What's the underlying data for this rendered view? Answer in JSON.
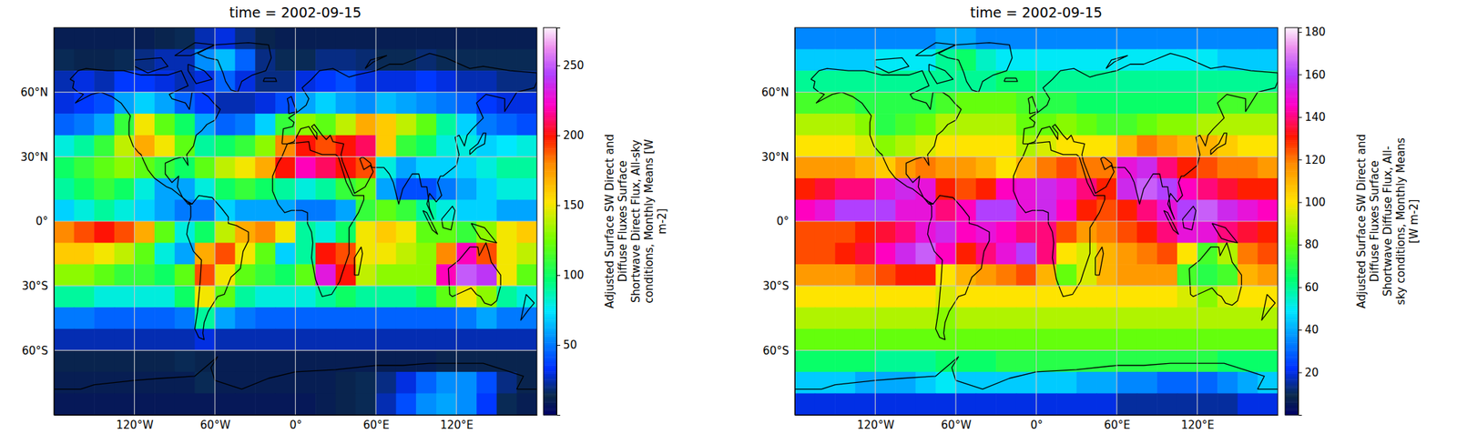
{
  "chart_data": [
    {
      "type": "heatmap",
      "title": "time = 2002-09-15",
      "x": [
        -172.5,
        -157.5,
        -142.5,
        -127.5,
        -112.5,
        -97.5,
        -82.5,
        -67.5,
        -52.5,
        -37.5,
        -22.5,
        -7.5,
        7.5,
        22.5,
        37.5,
        52.5,
        67.5,
        82.5,
        97.5,
        112.5,
        127.5,
        142.5,
        157.5,
        172.5
      ],
      "y": [
        85,
        75,
        65,
        55,
        45,
        35,
        25,
        15,
        5,
        -5,
        -15,
        -25,
        -35,
        -45,
        -55,
        -65,
        -75,
        -85
      ],
      "values": [
        [
          10,
          10,
          10,
          10,
          10,
          12,
          15,
          25,
          30,
          20,
          12,
          10,
          10,
          10,
          10,
          10,
          10,
          10,
          10,
          10,
          10,
          10,
          10,
          10
        ],
        [
          15,
          12,
          12,
          15,
          20,
          25,
          25,
          55,
          65,
          45,
          20,
          15,
          15,
          20,
          20,
          18,
          15,
          15,
          18,
          15,
          15,
          15,
          15,
          15
        ],
        [
          25,
          30,
          25,
          35,
          35,
          30,
          25,
          30,
          45,
          30,
          20,
          20,
          30,
          35,
          40,
          30,
          30,
          30,
          35,
          30,
          25,
          25,
          20,
          20
        ],
        [
          30,
          35,
          40,
          60,
          70,
          60,
          45,
          35,
          25,
          25,
          30,
          40,
          60,
          70,
          60,
          55,
          65,
          60,
          55,
          50,
          45,
          35,
          30,
          30
        ],
        [
          45,
          50,
          60,
          110,
          150,
          120,
          100,
          60,
          45,
          50,
          70,
          110,
          130,
          120,
          140,
          170,
          160,
          140,
          120,
          90,
          70,
          50,
          45,
          40
        ],
        [
          80,
          90,
          110,
          140,
          170,
          150,
          120,
          90,
          100,
          110,
          130,
          180,
          200,
          190,
          200,
          210,
          160,
          110,
          100,
          80,
          80,
          70,
          75,
          80
        ],
        [
          100,
          110,
          120,
          130,
          120,
          110,
          100,
          120,
          140,
          150,
          170,
          200,
          220,
          210,
          200,
          190,
          80,
          60,
          70,
          70,
          70,
          80,
          90,
          90
        ],
        [
          90,
          100,
          110,
          100,
          80,
          60,
          60,
          80,
          100,
          110,
          100,
          90,
          80,
          90,
          110,
          120,
          60,
          40,
          40,
          50,
          60,
          70,
          80,
          80
        ],
        [
          70,
          80,
          90,
          80,
          70,
          60,
          50,
          50,
          70,
          60,
          60,
          60,
          50,
          50,
          60,
          110,
          120,
          110,
          90,
          80,
          70,
          70,
          60,
          60
        ],
        [
          180,
          190,
          200,
          190,
          170,
          120,
          80,
          100,
          140,
          170,
          180,
          150,
          90,
          80,
          100,
          150,
          160,
          150,
          120,
          120,
          110,
          130,
          150,
          160
        ],
        [
          160,
          160,
          150,
          140,
          120,
          80,
          60,
          170,
          190,
          150,
          120,
          70,
          90,
          200,
          190,
          150,
          150,
          140,
          130,
          180,
          220,
          190,
          150,
          140
        ],
        [
          130,
          130,
          120,
          110,
          110,
          100,
          120,
          190,
          150,
          120,
          110,
          100,
          120,
          230,
          200,
          140,
          130,
          130,
          130,
          220,
          250,
          240,
          150,
          120
        ],
        [
          90,
          90,
          80,
          80,
          80,
          80,
          100,
          150,
          120,
          90,
          80,
          80,
          80,
          90,
          100,
          90,
          90,
          90,
          100,
          120,
          150,
          130,
          90,
          80
        ],
        [
          50,
          50,
          45,
          45,
          45,
          45,
          50,
          90,
          60,
          50,
          45,
          45,
          45,
          45,
          45,
          45,
          45,
          45,
          45,
          45,
          50,
          60,
          50,
          50
        ],
        [
          25,
          25,
          25,
          25,
          25,
          25,
          25,
          30,
          25,
          25,
          25,
          25,
          25,
          25,
          25,
          25,
          25,
          25,
          25,
          25,
          25,
          25,
          25,
          25
        ],
        [
          12,
          12,
          12,
          12,
          12,
          12,
          15,
          12,
          10,
          10,
          10,
          10,
          10,
          10,
          10,
          10,
          10,
          10,
          10,
          12,
          12,
          12,
          12,
          12
        ],
        [
          10,
          10,
          10,
          10,
          10,
          10,
          10,
          15,
          10,
          10,
          10,
          10,
          10,
          10,
          12,
          15,
          20,
          30,
          45,
          55,
          55,
          40,
          20,
          12
        ],
        [
          8,
          8,
          8,
          8,
          8,
          8,
          8,
          8,
          8,
          8,
          8,
          8,
          8,
          10,
          12,
          15,
          25,
          40,
          55,
          60,
          55,
          35,
          15,
          10
        ]
      ],
      "xlim": [
        -180,
        180
      ],
      "ylim": [
        -90,
        90
      ],
      "xticks": [
        {
          "value": -120,
          "label": "120°W"
        },
        {
          "value": -60,
          "label": "60°W"
        },
        {
          "value": 0,
          "label": "0°"
        },
        {
          "value": 60,
          "label": "60°E"
        },
        {
          "value": 120,
          "label": "120°E"
        }
      ],
      "yticks": [
        {
          "value": 60,
          "label": "60°N"
        },
        {
          "value": 30,
          "label": "30°N"
        },
        {
          "value": 0,
          "label": "0°"
        },
        {
          "value": -30,
          "label": "30°S"
        },
        {
          "value": -60,
          "label": "60°S"
        }
      ],
      "grid": true,
      "zlim": [
        0,
        277
      ],
      "zticks": [
        50,
        100,
        150,
        200,
        250
      ],
      "colorbar_label": [
        "Adjusted Surface SW Direct and",
        "Diffuse Fluxes Surface",
        "Shortwave Direct Flux, All-sky",
        "conditions, Monthly Means [W",
        "m-2]"
      ]
    },
    {
      "type": "heatmap",
      "title": "time = 2002-09-15",
      "x": [
        -172.5,
        -157.5,
        -142.5,
        -127.5,
        -112.5,
        -97.5,
        -82.5,
        -67.5,
        -52.5,
        -37.5,
        -22.5,
        -7.5,
        7.5,
        22.5,
        37.5,
        52.5,
        67.5,
        82.5,
        97.5,
        112.5,
        127.5,
        142.5,
        157.5,
        172.5
      ],
      "y": [
        85,
        75,
        65,
        55,
        45,
        35,
        25,
        15,
        5,
        -5,
        -15,
        -25,
        -35,
        -45,
        -55,
        -65,
        -75,
        -85
      ],
      "values": [
        [
          35,
          35,
          35,
          35,
          35,
          35,
          35,
          40,
          40,
          35,
          35,
          35,
          35,
          35,
          35,
          35,
          35,
          35,
          35,
          35,
          35,
          35,
          35,
          35
        ],
        [
          45,
          45,
          45,
          45,
          50,
          50,
          50,
          60,
          65,
          55,
          50,
          50,
          50,
          50,
          50,
          50,
          50,
          50,
          50,
          50,
          50,
          45,
          45,
          45
        ],
        [
          60,
          60,
          60,
          60,
          60,
          60,
          60,
          60,
          60,
          60,
          65,
          65,
          60,
          60,
          60,
          60,
          60,
          60,
          60,
          60,
          60,
          60,
          60,
          60
        ],
        [
          75,
          75,
          75,
          70,
          70,
          70,
          70,
          75,
          80,
          80,
          80,
          75,
          70,
          70,
          65,
          65,
          65,
          65,
          65,
          65,
          70,
          75,
          75,
          75
        ],
        [
          90,
          90,
          90,
          85,
          70,
          75,
          80,
          90,
          90,
          90,
          90,
          80,
          80,
          85,
          80,
          75,
          75,
          80,
          85,
          85,
          90,
          90,
          90,
          90
        ],
        [
          100,
          100,
          100,
          95,
          85,
          90,
          95,
          100,
          100,
          100,
          100,
          90,
          95,
          100,
          100,
          100,
          110,
          120,
          115,
          110,
          110,
          105,
          100,
          100
        ],
        [
          115,
          115,
          115,
          110,
          105,
          115,
          120,
          115,
          115,
          110,
          100,
          110,
          120,
          125,
          120,
          120,
          150,
          155,
          140,
          130,
          125,
          120,
          120,
          115
        ],
        [
          130,
          135,
          140,
          140,
          150,
          155,
          150,
          130,
          125,
          130,
          145,
          150,
          155,
          150,
          140,
          130,
          155,
          165,
          160,
          145,
          140,
          135,
          130,
          130
        ],
        [
          145,
          150,
          160,
          160,
          160,
          150,
          150,
          140,
          145,
          160,
          160,
          150,
          155,
          145,
          130,
          125,
          130,
          140,
          150,
          160,
          165,
          155,
          150,
          145
        ],
        [
          125,
          125,
          125,
          130,
          135,
          140,
          150,
          155,
          145,
          150,
          145,
          140,
          140,
          125,
          115,
          120,
          125,
          130,
          140,
          150,
          150,
          140,
          135,
          130
        ],
        [
          125,
          125,
          130,
          135,
          145,
          155,
          165,
          145,
          130,
          140,
          150,
          160,
          140,
          100,
          95,
          110,
          115,
          120,
          125,
          100,
          75,
          90,
          120,
          125
        ],
        [
          115,
          115,
          115,
          120,
          125,
          130,
          130,
          100,
          110,
          115,
          120,
          125,
          110,
          80,
          95,
          110,
          115,
          115,
          115,
          75,
          70,
          75,
          110,
          115
        ],
        [
          100,
          100,
          100,
          100,
          100,
          100,
          100,
          95,
          100,
          100,
          100,
          100,
          100,
          100,
          100,
          100,
          100,
          100,
          100,
          95,
          85,
          95,
          100,
          100
        ],
        [
          90,
          90,
          90,
          90,
          90,
          90,
          90,
          85,
          90,
          90,
          90,
          90,
          90,
          90,
          90,
          90,
          90,
          90,
          90,
          90,
          90,
          90,
          90,
          90
        ],
        [
          80,
          80,
          80,
          80,
          80,
          80,
          80,
          80,
          80,
          80,
          80,
          80,
          80,
          80,
          80,
          80,
          80,
          80,
          80,
          80,
          80,
          80,
          80,
          80
        ],
        [
          65,
          65,
          65,
          65,
          60,
          60,
          60,
          65,
          65,
          65,
          70,
          70,
          70,
          70,
          70,
          70,
          70,
          70,
          70,
          70,
          70,
          65,
          65,
          65
        ],
        [
          45,
          45,
          45,
          40,
          40,
          40,
          45,
          50,
          45,
          45,
          45,
          45,
          45,
          45,
          40,
          40,
          35,
          35,
          30,
          30,
          30,
          35,
          40,
          45
        ],
        [
          20,
          20,
          20,
          20,
          20,
          20,
          20,
          20,
          20,
          20,
          20,
          20,
          20,
          20,
          20,
          20,
          15,
          15,
          15,
          15,
          15,
          15,
          20,
          20
        ]
      ],
      "xlim": [
        -180,
        180
      ],
      "ylim": [
        -90,
        90
      ],
      "xticks": [
        {
          "value": -120,
          "label": "120°W"
        },
        {
          "value": -60,
          "label": "60°W"
        },
        {
          "value": 0,
          "label": "0°"
        },
        {
          "value": 60,
          "label": "60°E"
        },
        {
          "value": 120,
          "label": "120°E"
        }
      ],
      "yticks": [
        {
          "value": 60,
          "label": "60°N"
        },
        {
          "value": 30,
          "label": "30°N"
        },
        {
          "value": 0,
          "label": "0°"
        },
        {
          "value": -30,
          "label": "30°S"
        },
        {
          "value": -60,
          "label": "60°S"
        }
      ],
      "grid": true,
      "zlim": [
        0,
        182
      ],
      "zticks": [
        20,
        40,
        60,
        80,
        100,
        120,
        140,
        160,
        180
      ],
      "colorbar_label": [
        "Adjusted Surface SW Direct and",
        "Diffuse Fluxes Surface",
        "Shortwave Diffuse Flux, All-",
        "sky conditions, Monthly Means",
        "[W m-2]"
      ]
    }
  ]
}
